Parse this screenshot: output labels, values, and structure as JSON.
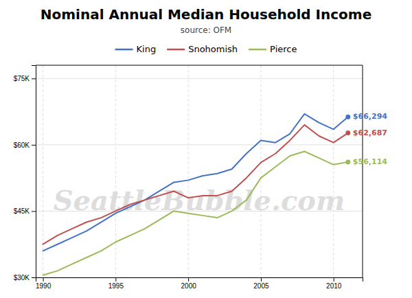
{
  "chart_data": {
    "type": "line",
    "title": "Nominal Annual Median Household Income",
    "subtitle": "source: OFM",
    "annotations": [
      "SeattleBubble.com"
    ],
    "x": [
      1990,
      1991,
      1992,
      1993,
      1994,
      1995,
      1996,
      1997,
      1998,
      1999,
      2000,
      2001,
      2002,
      2003,
      2004,
      2005,
      2006,
      2007,
      2008,
      2009,
      2010,
      2011
    ],
    "series": [
      {
        "name": "King",
        "color": "#4472C4",
        "values": [
          36000,
          37500,
          39000,
          40500,
          42500,
          44500,
          46000,
          47500,
          49500,
          51500,
          52000,
          53000,
          53500,
          54500,
          58000,
          61000,
          60500,
          62500,
          67000,
          65000,
          63500,
          66294
        ],
        "value_labels": [
          null,
          null,
          null,
          null,
          null,
          null,
          null,
          null,
          null,
          null,
          null,
          null,
          null,
          null,
          null,
          null,
          null,
          null,
          null,
          null,
          null,
          "$66,294"
        ]
      },
      {
        "name": "Snohomish",
        "color": "#C0504D",
        "values": [
          37500,
          39500,
          41000,
          42500,
          43500,
          45000,
          46500,
          47500,
          48500,
          49500,
          48000,
          48500,
          48500,
          49500,
          52500,
          56000,
          58000,
          61000,
          64500,
          62000,
          60500,
          62687
        ],
        "value_labels": [
          null,
          null,
          null,
          null,
          null,
          null,
          null,
          null,
          null,
          null,
          null,
          null,
          null,
          null,
          null,
          null,
          null,
          null,
          null,
          null,
          null,
          "$62,687"
        ]
      },
      {
        "name": "Pierce",
        "color": "#9BBB59",
        "values": [
          30500,
          31500,
          33000,
          34500,
          36000,
          38000,
          39500,
          41000,
          43000,
          45000,
          44500,
          44000,
          43500,
          45000,
          47500,
          52500,
          55000,
          57500,
          58500,
          57000,
          55500,
          56114
        ],
        "value_labels": [
          null,
          null,
          null,
          null,
          null,
          null,
          null,
          null,
          null,
          null,
          null,
          null,
          null,
          null,
          null,
          null,
          null,
          null,
          null,
          null,
          null,
          "$56,114"
        ]
      }
    ],
    "xlim": [
      1989.5,
      2012.0
    ],
    "ylim": [
      30000,
      78000
    ],
    "xticks": [
      1990,
      1995,
      2000,
      2005,
      2010
    ],
    "yticks": [
      {
        "value": 30000,
        "label": "$30K"
      },
      {
        "value": 45000,
        "label": "$45K"
      },
      {
        "value": 60000,
        "label": "$60K"
      },
      {
        "value": 75000,
        "label": "$75K"
      }
    ],
    "grid": true
  }
}
